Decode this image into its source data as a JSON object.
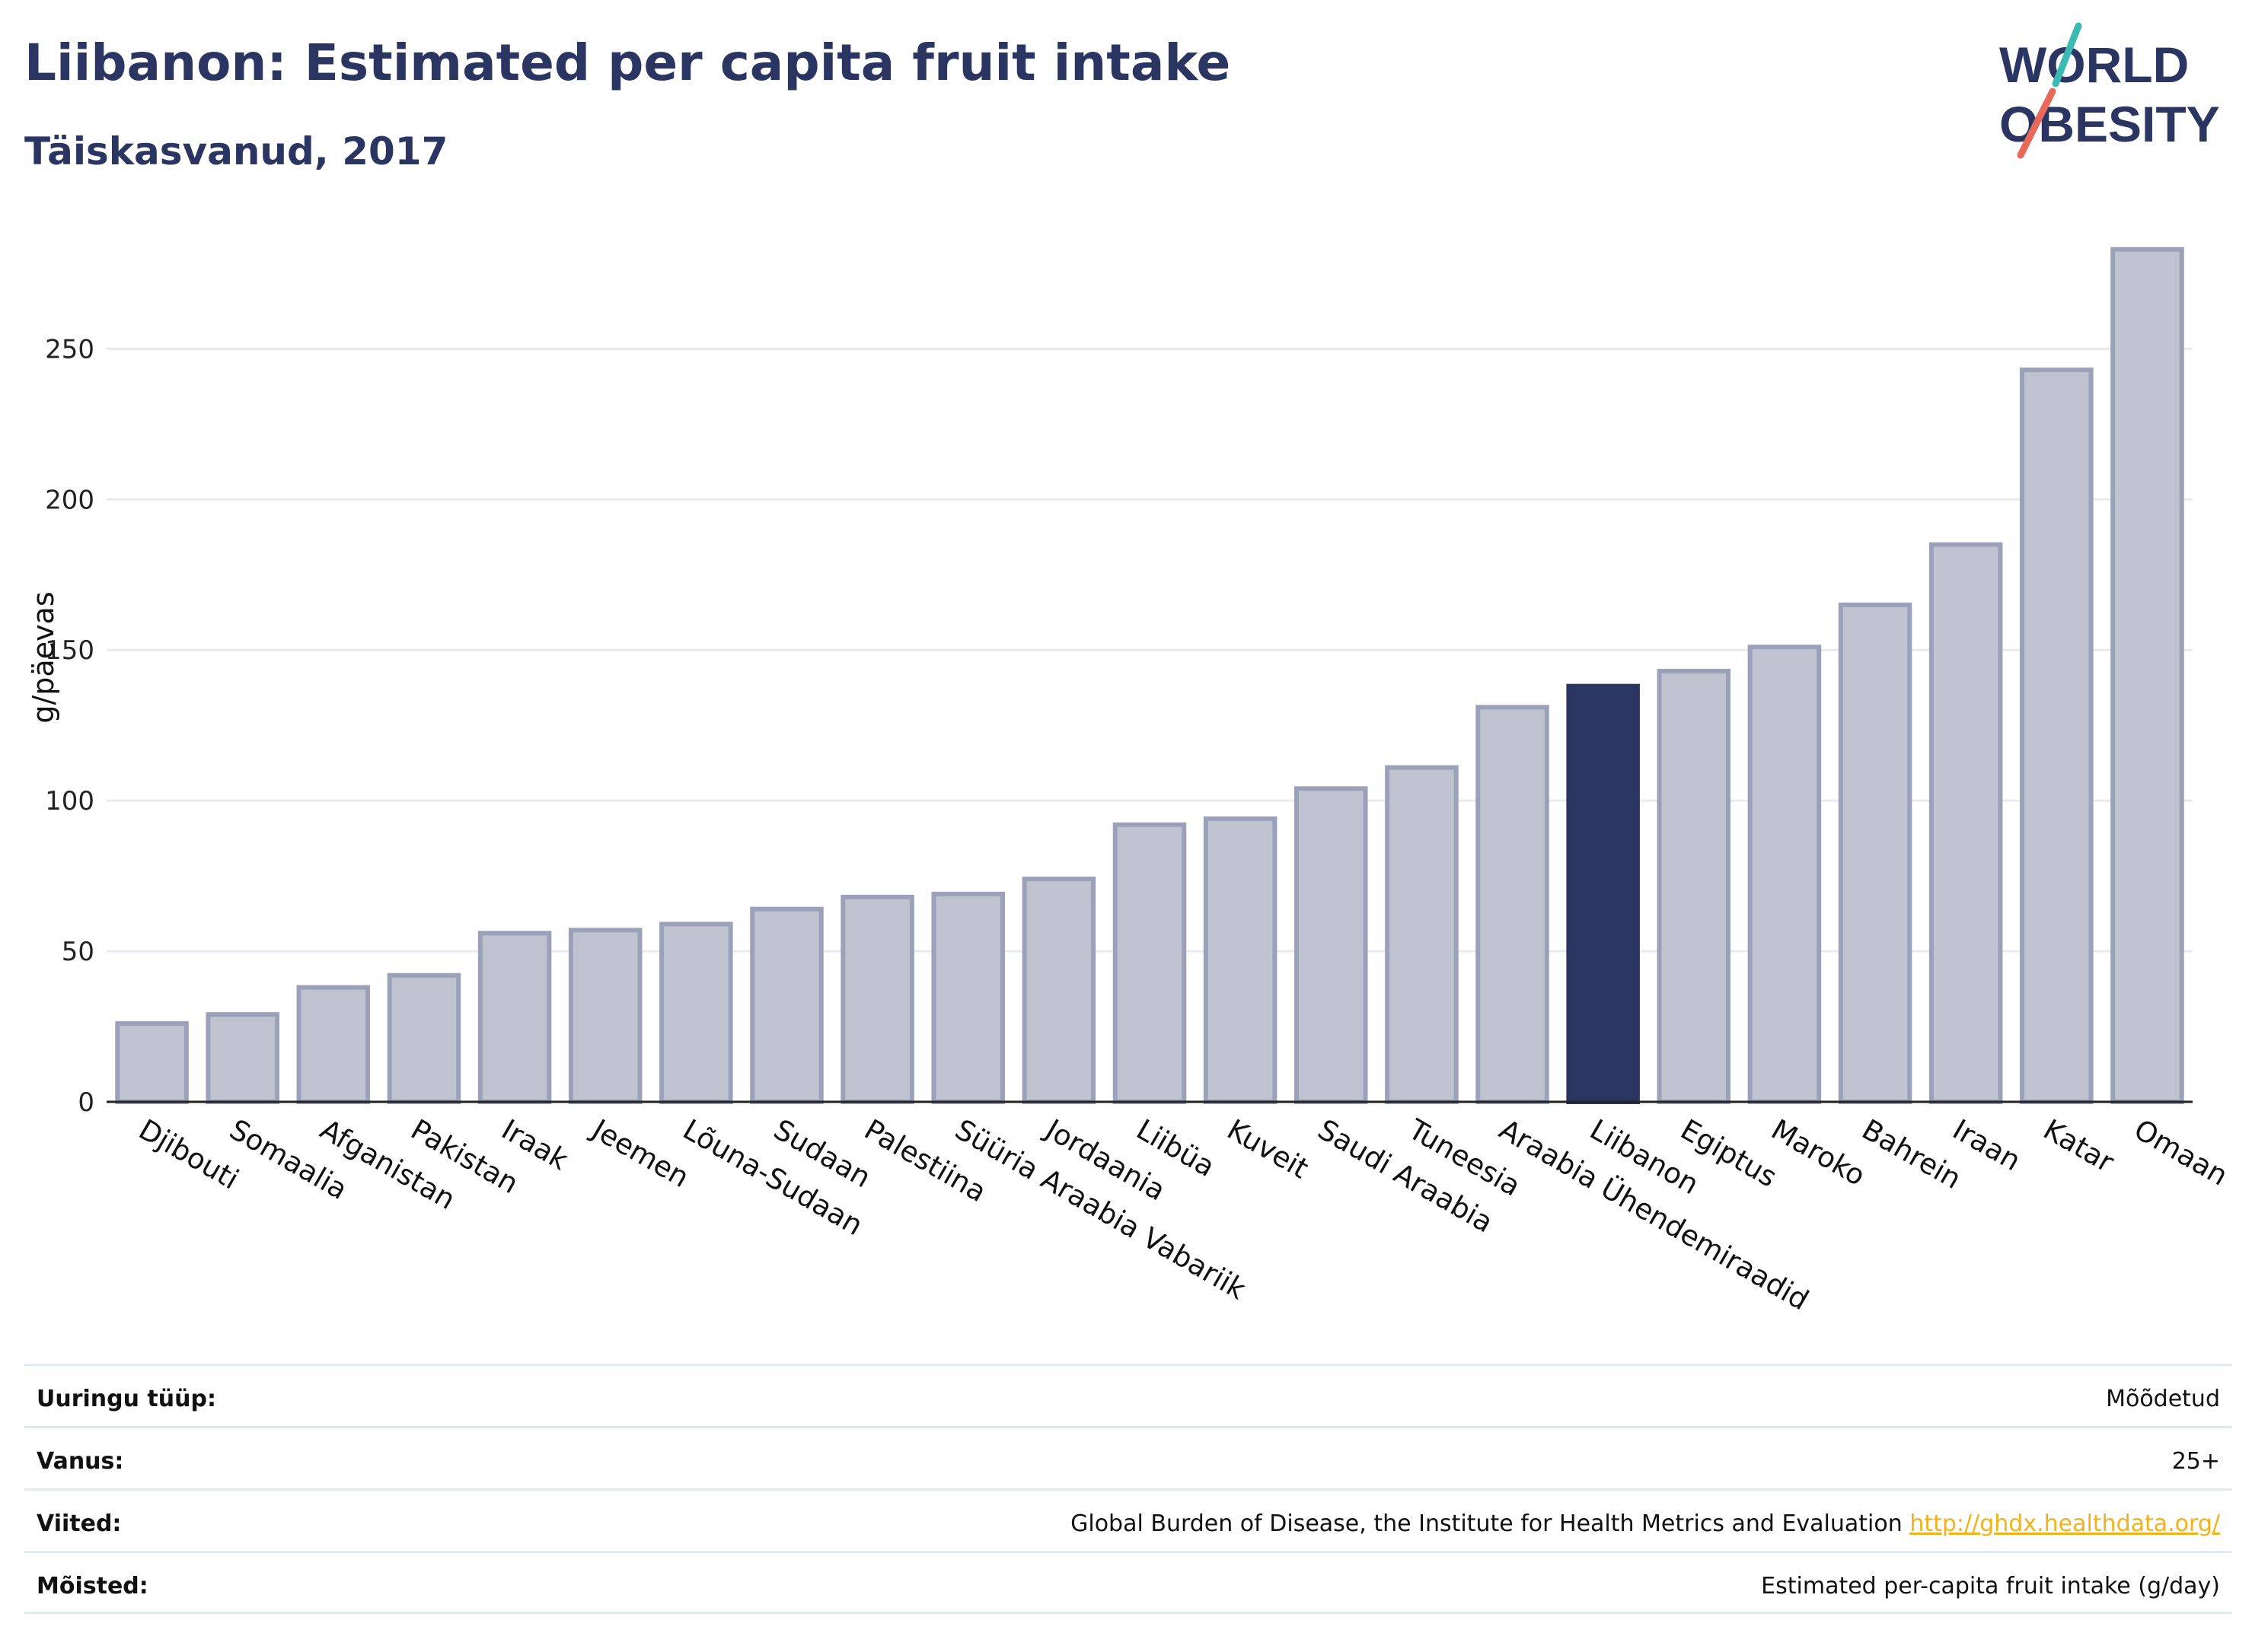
{
  "header": {
    "title": "Liibanon: Estimated per capita fruit intake",
    "subtitle": "Täiskasvanud, 2017"
  },
  "logo": {
    "line1": "WORLD",
    "line2": "OBESITY",
    "accent_teal": "#3bb9b3",
    "accent_red": "#e8685a"
  },
  "chart_data": {
    "type": "bar",
    "title": "Liibanon: Estimated per capita fruit intake",
    "subtitle": "Täiskasvanud, 2017",
    "xlabel": "",
    "ylabel": "g/päevas",
    "ylim": [
      0,
      290
    ],
    "yticks": [
      0,
      50,
      100,
      150,
      200,
      250
    ],
    "grid": true,
    "categories": [
      "Djibouti",
      "Somaalia",
      "Afganistan",
      "Pakistan",
      "Iraak",
      "Jeemen",
      "Lõuna-Sudaan",
      "Sudaan",
      "Palestiina",
      "Süüria Araabia Vabariik",
      "Jordaania",
      "Liibüa",
      "Kuveit",
      "Saudi Araabia",
      "Tuneesia",
      "Araabia Ühendemiraadid",
      "Liibanon",
      "Egiptus",
      "Maroko",
      "Bahrein",
      "Iraan",
      "Katar",
      "Omaan"
    ],
    "values": [
      26,
      29,
      38,
      42,
      56,
      57,
      59,
      64,
      68,
      69,
      74,
      92,
      94,
      104,
      111,
      131,
      138,
      143,
      151,
      165,
      185,
      243,
      283
    ],
    "highlight": "Liibanon",
    "colors": {
      "bar": "#bfc3d0",
      "bar_border": "#9aa1b9",
      "highlight": "#2a3561",
      "grid": "#e9eaf0",
      "axis": "#222222"
    }
  },
  "meta": [
    {
      "label": "Uuringu tüüp:",
      "value": "Mõõdetud",
      "link": ""
    },
    {
      "label": "Vanus:",
      "value": "25+",
      "link": ""
    },
    {
      "label": "Viited:",
      "value": "Global Burden of Disease, the Institute for Health Metrics and Evaluation",
      "link": "http://ghdx.healthdata.org/"
    },
    {
      "label": "Mõisted:",
      "value": "Estimated per-capita fruit intake (g/day)",
      "link": ""
    }
  ]
}
